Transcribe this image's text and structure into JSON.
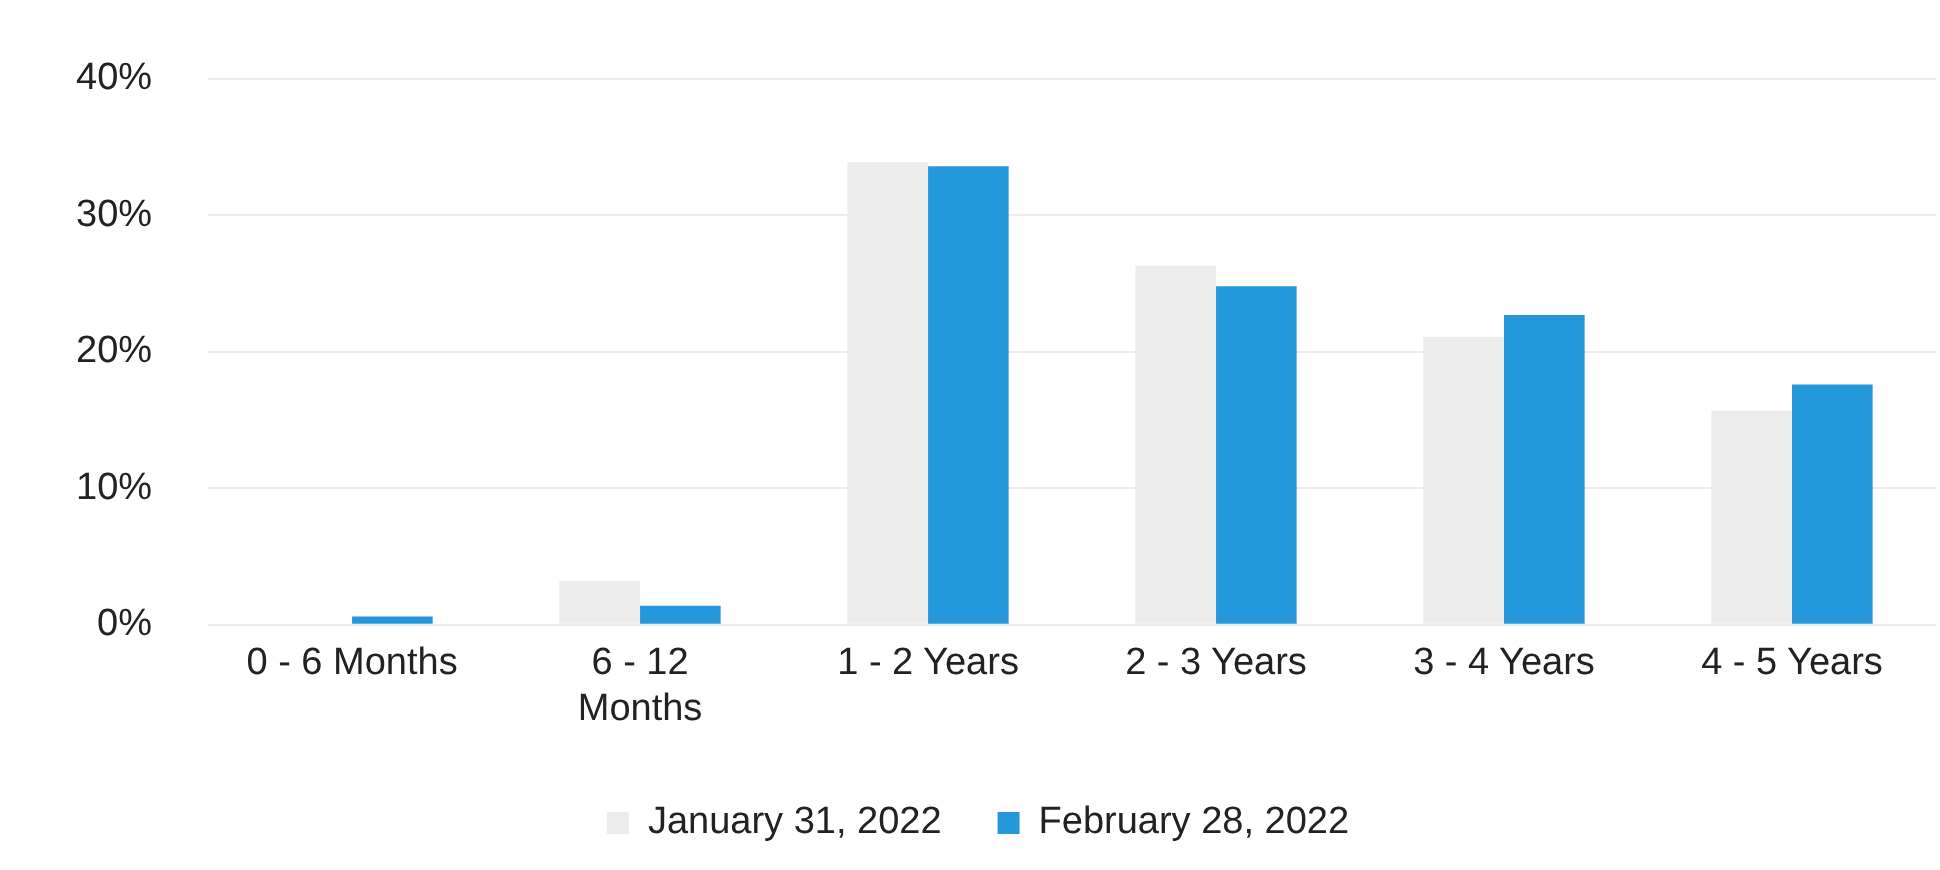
{
  "chart_data": {
    "type": "bar",
    "categories": [
      "0 - 6 Months",
      "6 - 12 Months",
      "1 - 2 Years",
      "2 - 3 Years",
      "3 - 4 Years",
      "4 - 5 Years"
    ],
    "series": [
      {
        "name": "January 31, 2022",
        "color": "#ececec",
        "values": [
          0,
          3.2,
          33.9,
          26.3,
          21.1,
          15.7
        ]
      },
      {
        "name": "February 28, 2022",
        "color": "#2598db",
        "values": [
          0.6,
          1.4,
          33.6,
          24.8,
          22.7,
          17.6
        ]
      }
    ],
    "ylim": [
      0,
      40
    ],
    "yticks": [
      {
        "value": 0,
        "label": "0%"
      },
      {
        "value": 10,
        "label": "10%"
      },
      {
        "value": 20,
        "label": "20%"
      },
      {
        "value": 30,
        "label": "30%"
      },
      {
        "value": 40,
        "label": "40%"
      }
    ],
    "grid": "y",
    "legend": "bottom"
  }
}
